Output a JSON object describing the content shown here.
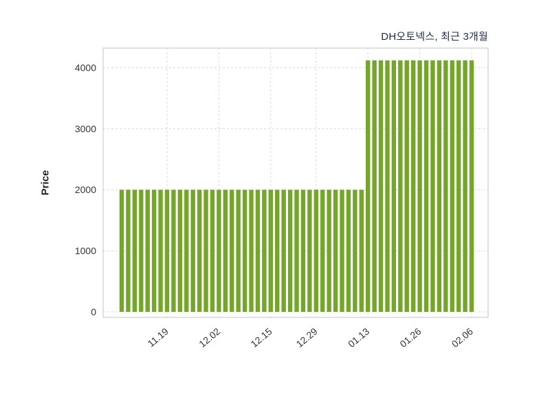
{
  "chart_data": {
    "type": "bar",
    "title": "DH오토넥스, 최근 3개월",
    "ylabel": "Price",
    "xlabel": "",
    "values": [
      2000,
      2000,
      2000,
      2000,
      2000,
      2000,
      2000,
      2000,
      2000,
      2000,
      2000,
      2000,
      2000,
      2000,
      2000,
      2000,
      2000,
      2000,
      2000,
      2000,
      2000,
      2000,
      2000,
      2000,
      2000,
      2000,
      2000,
      2000,
      2000,
      2000,
      2000,
      2000,
      2000,
      2000,
      2000,
      2000,
      2000,
      2000,
      4120,
      4120,
      4120,
      4120,
      4120,
      4120,
      4120,
      4120,
      4120,
      4120,
      4120,
      4120,
      4120,
      4120,
      4120,
      4120,
      4120
    ],
    "x_ticks": [
      {
        "label": "11.19",
        "index": 7
      },
      {
        "label": "12.02",
        "index": 15
      },
      {
        "label": "12.15",
        "index": 23
      },
      {
        "label": "12.29",
        "index": 30
      },
      {
        "label": "01.13",
        "index": 38
      },
      {
        "label": "01.26",
        "index": 46
      },
      {
        "label": "02.06",
        "index": 54
      }
    ],
    "y_ticks": [
      0,
      1000,
      2000,
      3000,
      4000
    ],
    "ylim": [
      0,
      4320
    ],
    "grid": true,
    "legend": "none",
    "bar_color": "#74a62a",
    "grid_color": "#d9d9d9",
    "border_color": "#cccccc",
    "title_color": "#1c2b4a",
    "tick_color": "#333333"
  }
}
